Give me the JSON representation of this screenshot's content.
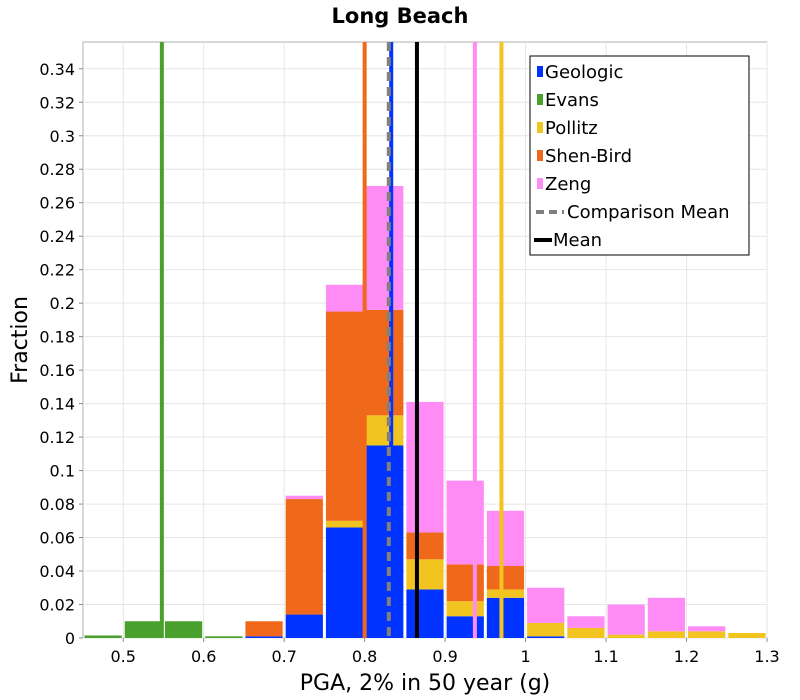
{
  "chart_data": {
    "type": "bar",
    "stacked": true,
    "title": "Long Beach",
    "xlabel": "PGA, 2% in 50 year (g)",
    "ylabel": "Fraction",
    "xlim": [
      0.45,
      1.3
    ],
    "ylim": [
      0,
      0.356
    ],
    "x_ticks": [
      "0.5",
      "0.6",
      "0.7",
      "0.8",
      "0.9",
      "1",
      "1.1",
      "1.2",
      "1.3"
    ],
    "y_ticks": [
      "0",
      "0.02",
      "0.04",
      "0.06",
      "0.08",
      "0.1",
      "0.12",
      "0.14",
      "0.16",
      "0.18",
      "0.2",
      "0.22",
      "0.24",
      "0.26",
      "0.28",
      "0.3",
      "0.32",
      "0.34"
    ],
    "grid": true,
    "legend_position": "top-right",
    "bin_width": 0.05,
    "bins": [
      0.45,
      0.5,
      0.55,
      0.6,
      0.65,
      0.7,
      0.75,
      0.8,
      0.85,
      0.9,
      0.95,
      1.0,
      1.05,
      1.1,
      1.15,
      1.2,
      1.25
    ],
    "series": [
      {
        "name": "Geologic",
        "color": "#0033ff",
        "values": [
          0,
          0,
          0,
          0,
          0.001,
          0.014,
          0.066,
          0.115,
          0.029,
          0.013,
          0.024,
          0.001,
          0,
          0,
          0,
          0,
          0
        ]
      },
      {
        "name": "Evans",
        "color": "#4aa02c",
        "values": [
          0.0015,
          0.01,
          0.01,
          0.001,
          0,
          0,
          0,
          0,
          0,
          0,
          0,
          0,
          0,
          0,
          0,
          0,
          0
        ]
      },
      {
        "name": "Pollitz",
        "color": "#f2c41f",
        "values": [
          0,
          0,
          0,
          0,
          0,
          0,
          0.004,
          0.018,
          0.018,
          0.009,
          0.005,
          0.008,
          0.006,
          0.002,
          0.004,
          0.004,
          0.003
        ]
      },
      {
        "name": "Shen-Bird",
        "color": "#f0681a",
        "values": [
          0,
          0,
          0,
          0,
          0.009,
          0.069,
          0.125,
          0.063,
          0.016,
          0.022,
          0.014,
          0,
          0,
          0,
          0,
          0,
          0
        ]
      },
      {
        "name": "Zeng",
        "color": "#ff8cf5",
        "values": [
          0,
          0,
          0,
          0,
          0,
          0.002,
          0.016,
          0.074,
          0.078,
          0.05,
          0.033,
          0.021,
          0.007,
          0.018,
          0.02,
          0.003,
          0
        ]
      }
    ],
    "vertical_lines": [
      {
        "name": "Geologic",
        "x": 0.833,
        "color": "#0033ff",
        "style": "solid"
      },
      {
        "name": "Evans",
        "x": 0.548,
        "color": "#4aa02c",
        "style": "solid"
      },
      {
        "name": "Pollitz",
        "x": 0.97,
        "color": "#f2c41f",
        "style": "solid"
      },
      {
        "name": "Shen-Bird",
        "x": 0.8,
        "color": "#f0681a",
        "style": "solid"
      },
      {
        "name": "Zeng",
        "x": 0.937,
        "color": "#ff8cf5",
        "style": "solid"
      },
      {
        "name": "Comparison Mean",
        "x": 0.83,
        "color": "#808080",
        "style": "dashed"
      },
      {
        "name": "Mean",
        "x": 0.865,
        "color": "#000000",
        "style": "solid"
      }
    ],
    "legend": [
      {
        "label": "Geologic",
        "color": "#0033ff",
        "symbol": "box"
      },
      {
        "label": "Evans",
        "color": "#4aa02c",
        "symbol": "box"
      },
      {
        "label": "Pollitz",
        "color": "#f2c41f",
        "symbol": "box"
      },
      {
        "label": "Shen-Bird",
        "color": "#f0681a",
        "symbol": "box"
      },
      {
        "label": "Zeng",
        "color": "#ff8cf5",
        "symbol": "box"
      },
      {
        "label": "Comparison Mean",
        "color": "#808080",
        "symbol": "dashed-line"
      },
      {
        "label": "Mean",
        "color": "#000000",
        "symbol": "line"
      }
    ]
  }
}
